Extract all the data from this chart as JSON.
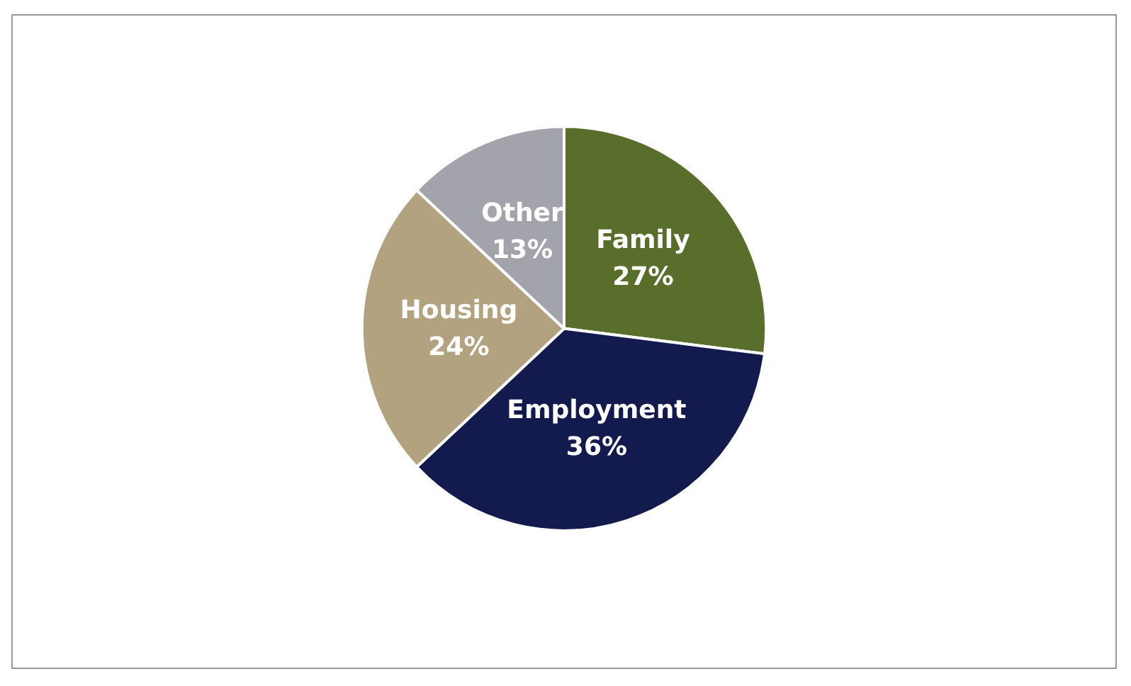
{
  "chart_data": {
    "type": "pie",
    "categories": [
      "Family",
      "Employment",
      "Housing",
      "Other"
    ],
    "values": [
      27,
      36,
      24,
      13
    ],
    "value_labels": [
      "27%",
      "36%",
      "24%",
      "13%"
    ],
    "colors": [
      "#5a6e2c",
      "#121a4e",
      "#b3a27f",
      "#a3a3ab"
    ],
    "legend": false
  }
}
